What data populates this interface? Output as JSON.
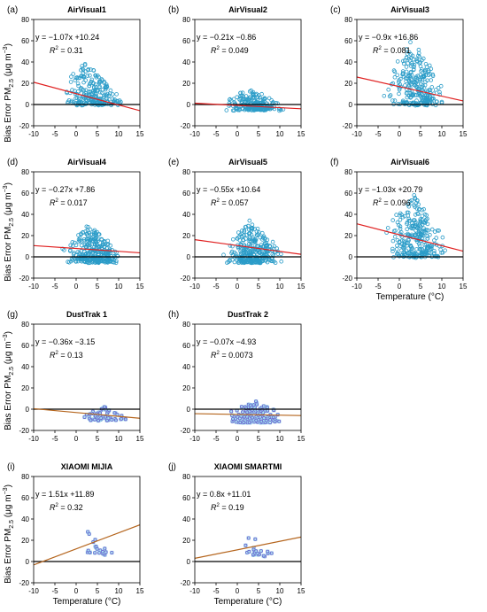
{
  "figure": {
    "ylabel_row_a": "Bias Error PM",
    "ylabel_row_b": "Bias Error PM",
    "ylabel_row_c": "Bias Error PM",
    "ylabel_row_d": "Bias Error PM",
    "ylabel_sub": "2.5",
    "ylabel_units": " (μg m",
    "ylabel_units_sup": "−3",
    "ylabel_units_end": ")",
    "xlabel": "Temperature (°C)"
  },
  "colors": {
    "airvisual_points": "#2b9cc8",
    "other_points_edge": "#6a5acd",
    "other_points_fill": "#9fe6f0",
    "fit_line_airvisual": "#e02020",
    "fit_line_other": "#b5651d",
    "zero_line": "#000000"
  },
  "chart_data": [
    {
      "type": "scatter",
      "panel_letter": "(a)",
      "title": "AirVisual1",
      "equation": "y = −1.07x +10.24",
      "r2_label": "R",
      "r2_value": " = 0.31",
      "slope": -1.07,
      "intercept": 10.24,
      "xlim": [
        -10,
        15
      ],
      "ylim": [
        -20,
        80
      ],
      "xticks": [
        -10,
        -5,
        0,
        5,
        10,
        15
      ],
      "yticks": [
        -20,
        0,
        20,
        40,
        60,
        80
      ],
      "show_xlabel": false,
      "cloud": {
        "x_range": [
          -4,
          12
        ],
        "center_x": 2,
        "y_low": 0,
        "y_high": 40,
        "n": 240,
        "style": "airvisual"
      }
    },
    {
      "type": "scatter",
      "panel_letter": "(b)",
      "title": "AirVisual2",
      "equation": "y = −0.21x −0.86",
      "r2_label": "R",
      "r2_value": " = 0.049",
      "slope": -0.21,
      "intercept": -0.86,
      "xlim": [
        -10,
        15
      ],
      "ylim": [
        -20,
        80
      ],
      "xticks": [
        -10,
        -5,
        0,
        5,
        10,
        15
      ],
      "yticks": [
        -20,
        0,
        20,
        40,
        60,
        80
      ],
      "show_xlabel": false,
      "cloud": {
        "x_range": [
          -4,
          12
        ],
        "center_x": 3,
        "y_low": -5,
        "y_high": 15,
        "n": 220,
        "style": "airvisual"
      }
    },
    {
      "type": "scatter",
      "panel_letter": "(c)",
      "title": "AirVisual3",
      "equation": "y = −0.9x +16.86",
      "r2_label": "R",
      "r2_value": " = 0.081",
      "slope": -0.9,
      "intercept": 16.86,
      "xlim": [
        -10,
        15
      ],
      "ylim": [
        -20,
        80
      ],
      "xticks": [
        -10,
        -5,
        0,
        5,
        10,
        15
      ],
      "yticks": [
        -20,
        0,
        20,
        40,
        60,
        80
      ],
      "show_xlabel": false,
      "cloud": {
        "x_range": [
          -4,
          12
        ],
        "center_x": 3,
        "y_low": 0,
        "y_high": 62,
        "n": 260,
        "style": "airvisual"
      }
    },
    {
      "type": "scatter",
      "panel_letter": "(d)",
      "title": "AirVisual4",
      "equation": "y = −0.27x +7.86",
      "r2_label": "R",
      "r2_value": " = 0.017",
      "slope": -0.27,
      "intercept": 7.86,
      "xlim": [
        -10,
        15
      ],
      "ylim": [
        -20,
        80
      ],
      "xticks": [
        -10,
        -5,
        0,
        5,
        10,
        15
      ],
      "yticks": [
        -20,
        0,
        20,
        40,
        60,
        80
      ],
      "show_xlabel": false,
      "cloud": {
        "x_range": [
          -4,
          12
        ],
        "center_x": 3,
        "y_low": -5,
        "y_high": 30,
        "n": 300,
        "style": "airvisual"
      }
    },
    {
      "type": "scatter",
      "panel_letter": "(e)",
      "title": "AirVisual5",
      "equation": "y = −0.55x +10.64",
      "r2_label": "R",
      "r2_value": " = 0.057",
      "slope": -0.55,
      "intercept": 10.64,
      "xlim": [
        -10,
        15
      ],
      "ylim": [
        -20,
        80
      ],
      "xticks": [
        -10,
        -5,
        0,
        5,
        10,
        15
      ],
      "yticks": [
        -20,
        0,
        20,
        40,
        60,
        80
      ],
      "show_xlabel": false,
      "cloud": {
        "x_range": [
          -4,
          12
        ],
        "center_x": 3,
        "y_low": -5,
        "y_high": 35,
        "n": 300,
        "style": "airvisual"
      }
    },
    {
      "type": "scatter",
      "panel_letter": "(f)",
      "title": "AirVisual6",
      "equation": "y = −1.03x +20.79",
      "r2_label": "R",
      "r2_value": " = 0.096",
      "slope": -1.03,
      "intercept": 20.79,
      "xlim": [
        -10,
        15
      ],
      "ylim": [
        -20,
        80
      ],
      "xticks": [
        -10,
        -5,
        0,
        5,
        10,
        15
      ],
      "yticks": [
        -20,
        0,
        20,
        40,
        60,
        80
      ],
      "show_xlabel": true,
      "cloud": {
        "x_range": [
          -4,
          12
        ],
        "center_x": 3,
        "y_low": 0,
        "y_high": 65,
        "n": 280,
        "style": "airvisual"
      }
    },
    {
      "type": "scatter",
      "panel_letter": "(g)",
      "title": "DustTrak 1",
      "equation": "y = −0.36x −3.15",
      "r2_label": "R",
      "r2_value": " = 0.13",
      "slope": -0.36,
      "intercept": -3.15,
      "xlim": [
        -10,
        15
      ],
      "ylim": [
        -20,
        80
      ],
      "xticks": [
        -10,
        -5,
        0,
        5,
        10,
        15
      ],
      "yticks": [
        -20,
        0,
        20,
        40,
        60,
        80
      ],
      "show_xlabel": false,
      "cloud": {
        "x_range": [
          0,
          13
        ],
        "center_x": 7,
        "y_low": -10,
        "y_high": 2,
        "n": 70,
        "style": "other"
      }
    },
    {
      "type": "scatter",
      "panel_letter": "(h)",
      "title": "DustTrak 2",
      "equation": "y = −0.07x −4.93",
      "r2_label": "R",
      "r2_value": " = 0.0073",
      "slope": -0.07,
      "intercept": -4.93,
      "xlim": [
        -10,
        15
      ],
      "ylim": [
        -20,
        80
      ],
      "xticks": [
        -10,
        -5,
        0,
        5,
        10,
        15
      ],
      "yticks": [
        -20,
        0,
        20,
        40,
        60,
        80
      ],
      "show_xlabel": false,
      "cloud": {
        "x_range": [
          -4,
          13
        ],
        "center_x": 4,
        "y_low": -12,
        "y_high": 8,
        "n": 160,
        "style": "other"
      }
    },
    {
      "type": "scatter",
      "panel_letter": "(i)",
      "title": "XIAOMI MIJIA",
      "equation": "y = 1.51x +11.89",
      "r2_label": "R",
      "r2_value": " = 0.32",
      "slope": 1.51,
      "intercept": 11.89,
      "xlim": [
        -10,
        15
      ],
      "ylim": [
        -20,
        80
      ],
      "xticks": [
        -10,
        -5,
        0,
        5,
        10,
        15
      ],
      "yticks": [
        -20,
        0,
        20,
        40,
        60,
        80
      ],
      "show_xlabel": true,
      "cloud": {
        "x_range": [
          1,
          9
        ],
        "center_x": 3,
        "y_low": 6,
        "y_high": 30,
        "n": 22,
        "style": "other"
      }
    },
    {
      "type": "scatter",
      "panel_letter": "(j)",
      "title": "XIAOMI SMARTMI",
      "equation": "y = 0.8x +11.01",
      "r2_label": "R",
      "r2_value": " = 0.19",
      "slope": 0.8,
      "intercept": 11.01,
      "xlim": [
        -10,
        15
      ],
      "ylim": [
        -20,
        80
      ],
      "xticks": [
        -10,
        -5,
        0,
        5,
        10,
        15
      ],
      "yticks": [
        -20,
        0,
        20,
        40,
        60,
        80
      ],
      "show_xlabel": true,
      "cloud": {
        "x_range": [
          0,
          9
        ],
        "center_x": 3,
        "y_low": 5,
        "y_high": 25,
        "n": 22,
        "style": "other"
      }
    }
  ]
}
